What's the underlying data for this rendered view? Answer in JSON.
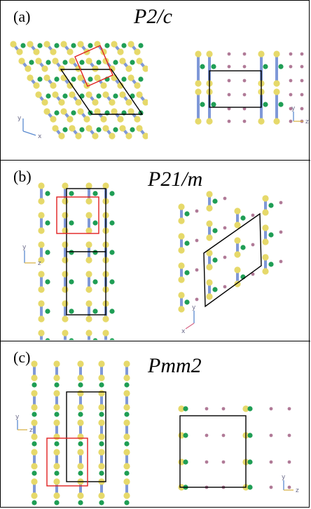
{
  "panels": [
    {
      "label": "(a)",
      "space_group": "P2/c"
    },
    {
      "label": "(b)",
      "space_group": "P21/m"
    },
    {
      "label": "(c)",
      "space_group": "Pmm2"
    }
  ],
  "axis_labels": {
    "x": "x",
    "y": "y",
    "z": "z"
  },
  "colors": {
    "yellow_atom": "#e6d96a",
    "green_atom": "#1f9e55",
    "pink_atom": "#b07a97",
    "bond": "#7f98d8",
    "cell_black": "#000000",
    "cell_red": "#e02020"
  }
}
